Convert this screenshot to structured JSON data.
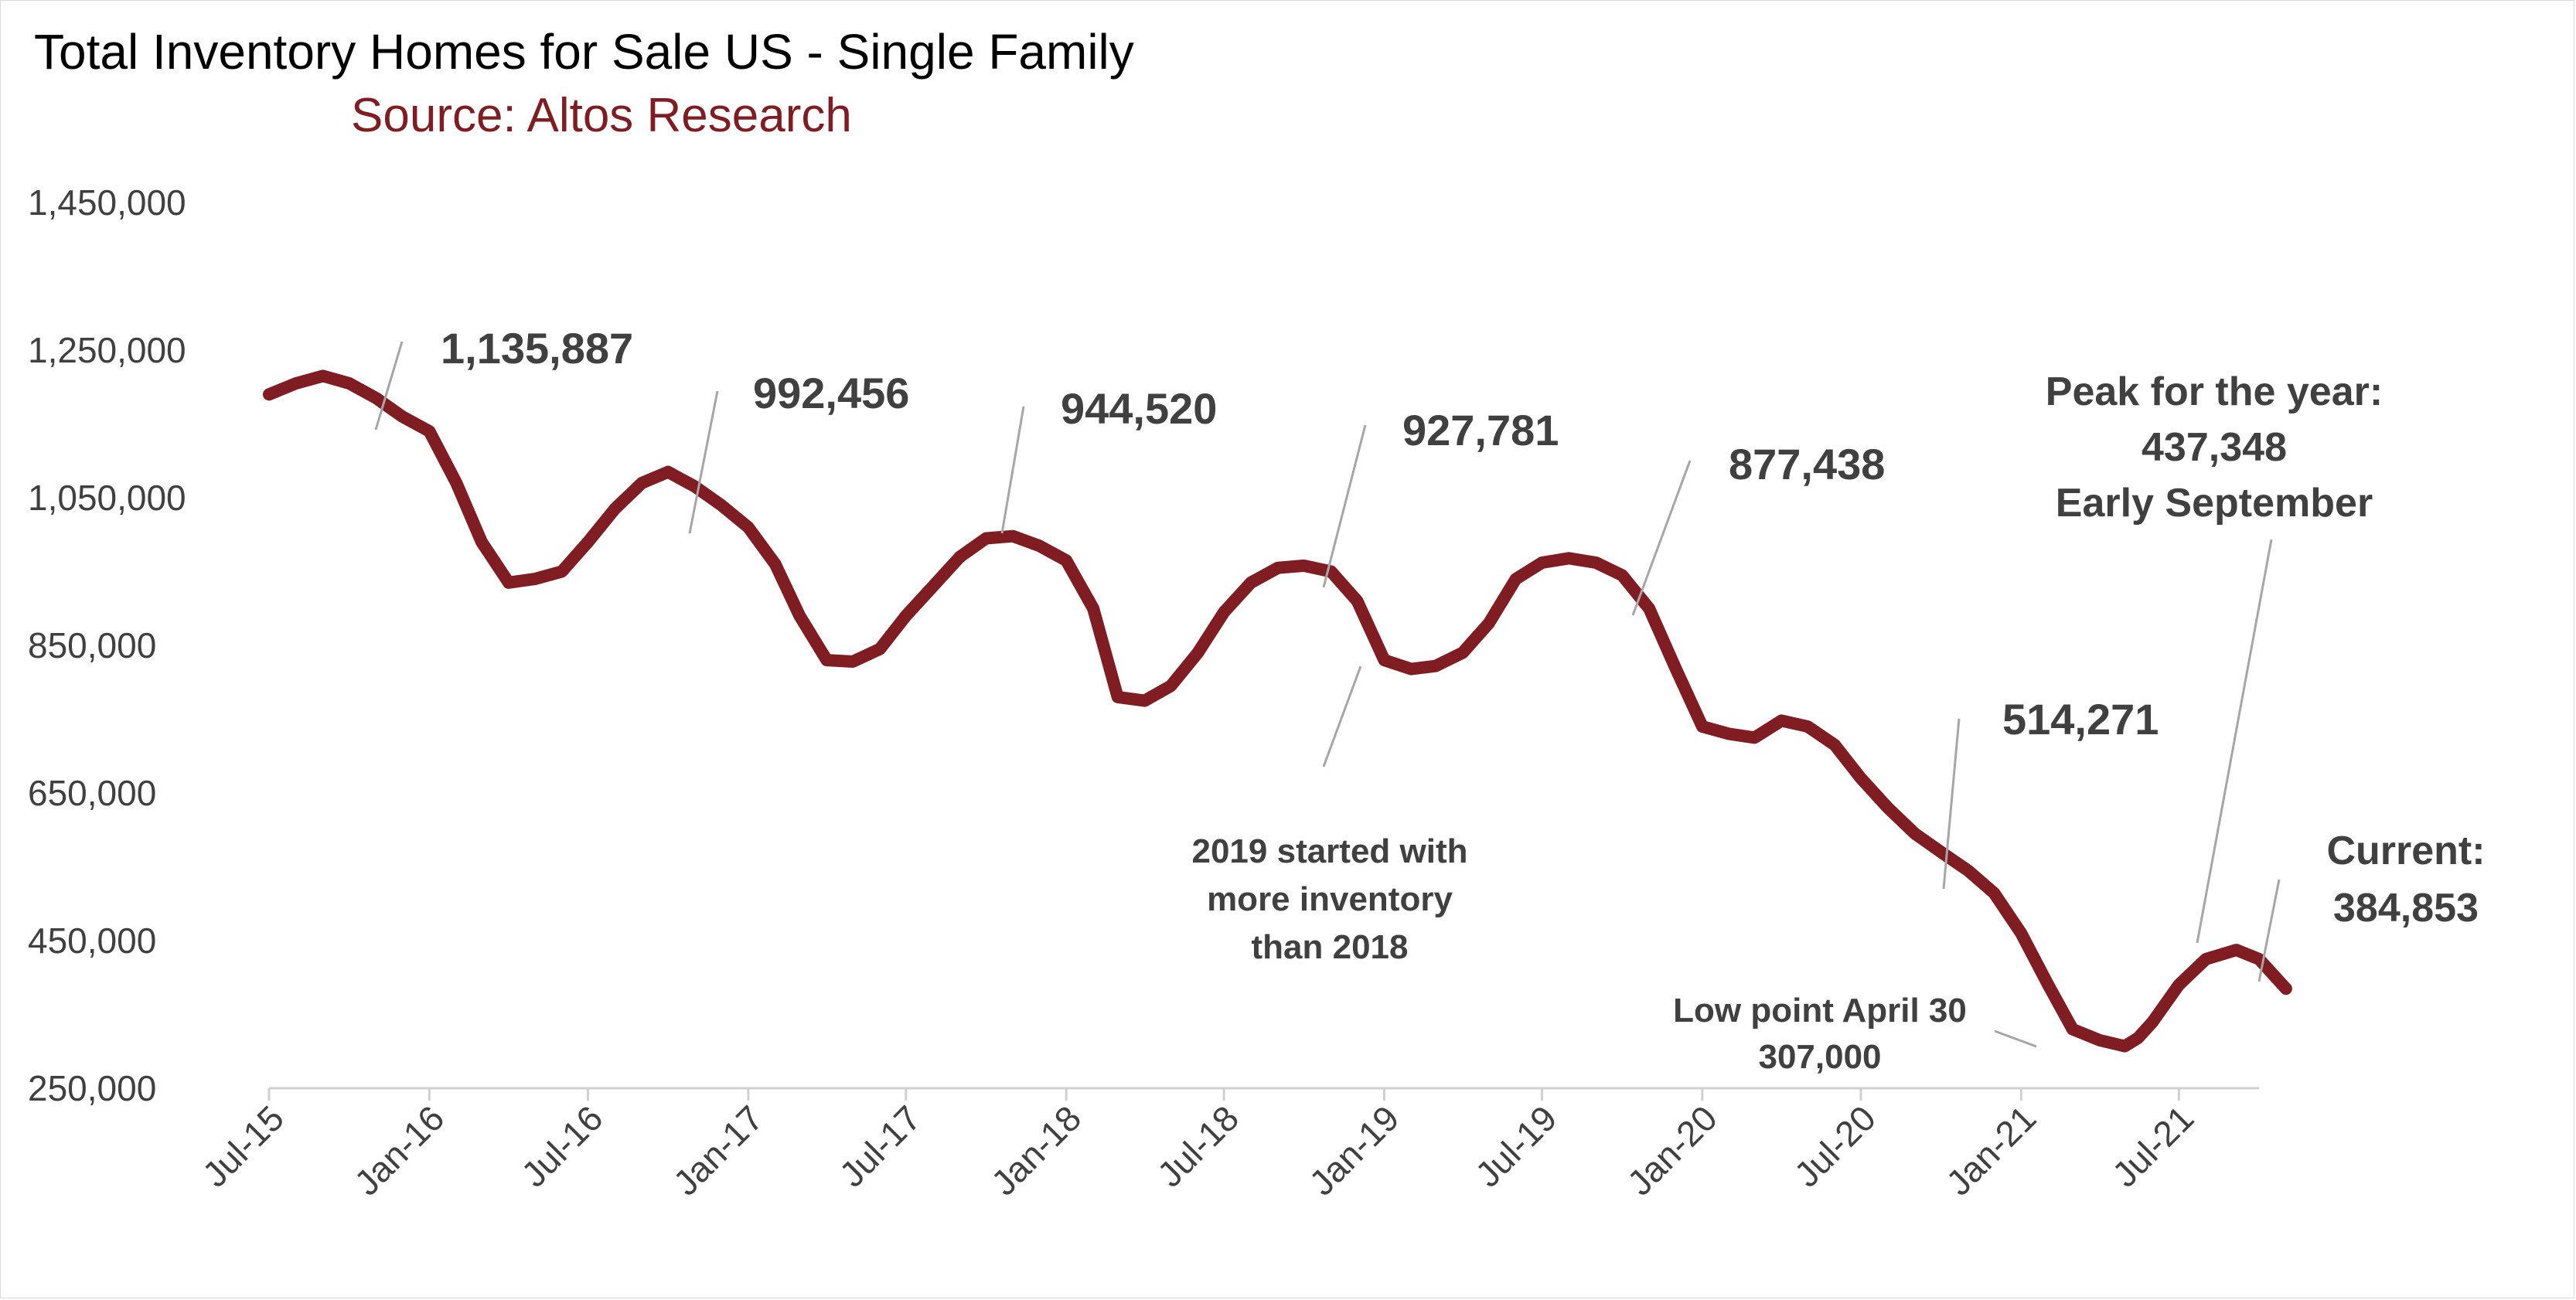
{
  "chart_data": {
    "type": "line",
    "title": "Total Inventory Homes for Sale US - Single Family",
    "subtitle": "Source: Altos Research",
    "x_ticks": [
      "Jul-15",
      "Jan-16",
      "Jul-16",
      "Jan-17",
      "Jul-17",
      "Jan-18",
      "Jul-18",
      "Jan-19",
      "Jul-19",
      "Jan-20",
      "Jul-20",
      "Jan-21",
      "Jul-21"
    ],
    "y_ticks": [
      "1,450,000",
      "1,250,000",
      "1,050,000",
      "850,000",
      "650,000",
      "450,000",
      "250,000"
    ],
    "ylim": [
      250000,
      1450000
    ],
    "xlim": [
      "2015-07",
      "2021-10"
    ],
    "grid": false,
    "line_color": "#7f1d22",
    "series": [
      {
        "values": [
          {
            "x": "2015-07-01",
            "y": 1190000
          },
          {
            "x": "2015-08-01",
            "y": 1205000
          },
          {
            "x": "2015-09-01",
            "y": 1215000
          },
          {
            "x": "2015-10-01",
            "y": 1205000
          },
          {
            "x": "2015-11-01",
            "y": 1185000
          },
          {
            "x": "2015-12-01",
            "y": 1160000
          },
          {
            "x": "2016-01-01",
            "y": 1140000
          },
          {
            "x": "2016-02-01",
            "y": 1070000
          },
          {
            "x": "2016-03-01",
            "y": 990000
          },
          {
            "x": "2016-04-01",
            "y": 935000
          },
          {
            "x": "2016-05-01",
            "y": 940000
          },
          {
            "x": "2016-06-01",
            "y": 950000
          },
          {
            "x": "2016-07-01",
            "y": 990000
          },
          {
            "x": "2016-08-01",
            "y": 1035000
          },
          {
            "x": "2016-09-01",
            "y": 1070000
          },
          {
            "x": "2016-10-01",
            "y": 1085000
          },
          {
            "x": "2016-11-01",
            "y": 1065000
          },
          {
            "x": "2016-12-01",
            "y": 1040000
          },
          {
            "x": "2017-01-01",
            "y": 1010000
          },
          {
            "x": "2017-02-01",
            "y": 960000
          },
          {
            "x": "2017-03-01",
            "y": 890000
          },
          {
            "x": "2017-04-01",
            "y": 830000
          },
          {
            "x": "2017-05-01",
            "y": 828000
          },
          {
            "x": "2017-06-01",
            "y": 845000
          },
          {
            "x": "2017-07-01",
            "y": 890000
          },
          {
            "x": "2017-08-01",
            "y": 930000
          },
          {
            "x": "2017-09-01",
            "y": 970000
          },
          {
            "x": "2017-10-01",
            "y": 995000
          },
          {
            "x": "2017-11-01",
            "y": 998000
          },
          {
            "x": "2017-12-01",
            "y": 985000
          },
          {
            "x": "2018-01-01",
            "y": 965000
          },
          {
            "x": "2018-02-01",
            "y": 900000
          },
          {
            "x": "2018-03-01",
            "y": 780000
          },
          {
            "x": "2018-04-01",
            "y": 775000
          },
          {
            "x": "2018-05-01",
            "y": 795000
          },
          {
            "x": "2018-06-01",
            "y": 840000
          },
          {
            "x": "2018-07-01",
            "y": 895000
          },
          {
            "x": "2018-08-01",
            "y": 935000
          },
          {
            "x": "2018-09-01",
            "y": 955000
          },
          {
            "x": "2018-10-01",
            "y": 958000
          },
          {
            "x": "2018-11-01",
            "y": 950000
          },
          {
            "x": "2018-12-01",
            "y": 910000
          },
          {
            "x": "2019-01-01",
            "y": 830000
          },
          {
            "x": "2019-02-01",
            "y": 818000
          },
          {
            "x": "2019-03-01",
            "y": 822000
          },
          {
            "x": "2019-04-01",
            "y": 840000
          },
          {
            "x": "2019-05-01",
            "y": 880000
          },
          {
            "x": "2019-06-01",
            "y": 940000
          },
          {
            "x": "2019-07-01",
            "y": 962000
          },
          {
            "x": "2019-08-01",
            "y": 968000
          },
          {
            "x": "2019-09-01",
            "y": 962000
          },
          {
            "x": "2019-10-01",
            "y": 945000
          },
          {
            "x": "2019-11-01",
            "y": 900000
          },
          {
            "x": "2019-12-01",
            "y": 820000
          },
          {
            "x": "2020-01-01",
            "y": 740000
          },
          {
            "x": "2020-02-01",
            "y": 730000
          },
          {
            "x": "2020-03-01",
            "y": 725000
          },
          {
            "x": "2020-04-01",
            "y": 748000
          },
          {
            "x": "2020-05-01",
            "y": 740000
          },
          {
            "x": "2020-06-01",
            "y": 715000
          },
          {
            "x": "2020-07-01",
            "y": 670000
          },
          {
            "x": "2020-08-01",
            "y": 630000
          },
          {
            "x": "2020-09-01",
            "y": 595000
          },
          {
            "x": "2020-10-01",
            "y": 570000
          },
          {
            "x": "2020-11-01",
            "y": 545000
          },
          {
            "x": "2020-12-01",
            "y": 514271
          },
          {
            "x": "2021-01-01",
            "y": 460000
          },
          {
            "x": "2021-02-01",
            "y": 390000
          },
          {
            "x": "2021-03-01",
            "y": 330000
          },
          {
            "x": "2021-04-01",
            "y": 315000
          },
          {
            "x": "2021-04-30",
            "y": 307000
          },
          {
            "x": "2021-05-15",
            "y": 318000
          },
          {
            "x": "2021-06-01",
            "y": 340000
          },
          {
            "x": "2021-07-01",
            "y": 390000
          },
          {
            "x": "2021-08-01",
            "y": 425000
          },
          {
            "x": "2021-09-05",
            "y": 437348
          },
          {
            "x": "2021-10-01",
            "y": 425000
          },
          {
            "x": "2021-11-01",
            "y": 384853
          }
        ]
      }
    ],
    "annotations": [
      {
        "text": "1,135,887"
      },
      {
        "text": "992,456"
      },
      {
        "text": "944,520"
      },
      {
        "text": "927,781"
      },
      {
        "text": "877,438"
      },
      {
        "text": "514,271"
      },
      {
        "lines": [
          "2019 started with",
          "more inventory",
          "than 2018"
        ]
      },
      {
        "lines": [
          "Low point April 30",
          "307,000"
        ]
      },
      {
        "lines": [
          "Peak for the year:",
          "437,348",
          "Early September"
        ]
      },
      {
        "lines": [
          "Current:",
          "384,853"
        ]
      }
    ]
  }
}
